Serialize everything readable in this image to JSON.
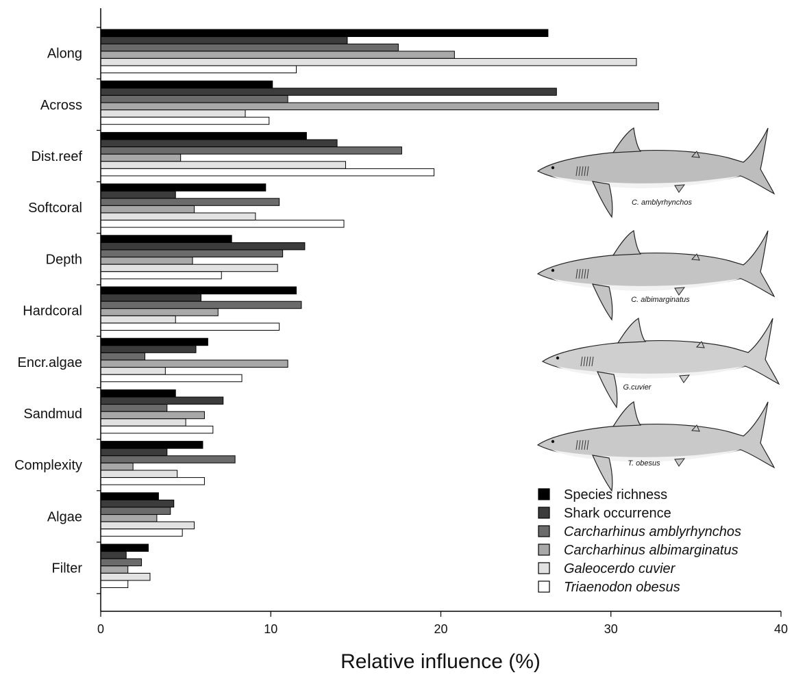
{
  "chart_data": {
    "type": "bar",
    "orientation": "horizontal",
    "title": "",
    "xlabel": "Relative influence (%)",
    "ylabel": "",
    "xlim": [
      0,
      40
    ],
    "xticks": [
      0,
      10,
      20,
      30,
      40
    ],
    "grid": false,
    "legend_position": "bottom-right",
    "categories": [
      "Along",
      "Across",
      "Dist.reef",
      "Softcoral",
      "Depth",
      "Hardcoral",
      "Encr.algae",
      "Sandmud",
      "Complexity",
      "Algae",
      "Filter"
    ],
    "series": [
      {
        "name": "Species richness",
        "italic": false,
        "color": "#000000",
        "values": [
          26.3,
          10.1,
          12.1,
          9.7,
          7.7,
          11.5,
          6.3,
          4.4,
          6.0,
          3.4,
          2.8
        ]
      },
      {
        "name": "Shark occurrence",
        "italic": false,
        "color": "#3c3c3c",
        "values": [
          14.5,
          26.8,
          13.9,
          4.4,
          12.0,
          5.9,
          5.6,
          7.2,
          3.9,
          4.3,
          1.5
        ]
      },
      {
        "name": "Carcharhinus amblyrhynchos",
        "italic": true,
        "color": "#6b6b6b",
        "values": [
          17.5,
          11.0,
          17.7,
          10.5,
          10.7,
          11.8,
          2.6,
          3.9,
          7.9,
          4.1,
          2.4
        ]
      },
      {
        "name": "Carcharhinus albimarginatus",
        "italic": true,
        "color": "#a8a8a8",
        "values": [
          20.8,
          32.8,
          4.7,
          5.5,
          5.4,
          6.9,
          11.0,
          6.1,
          1.9,
          3.3,
          1.6
        ]
      },
      {
        "name": "Galeocerdo cuvier",
        "italic": true,
        "color": "#e2e2e2",
        "values": [
          31.5,
          8.5,
          14.4,
          9.1,
          10.4,
          4.4,
          3.8,
          5.0,
          4.5,
          5.5,
          2.9
        ]
      },
      {
        "name": "Triaenodon obesus",
        "italic": true,
        "color": "#ffffff",
        "values": [
          11.5,
          9.9,
          19.6,
          14.3,
          7.1,
          10.5,
          8.3,
          6.6,
          6.1,
          4.8,
          1.6
        ]
      }
    ]
  },
  "illustrations": [
    {
      "caption": "C. amblyrhynchos",
      "icon": "grey-reef-shark-icon"
    },
    {
      "caption": "C. albimarginatus",
      "icon": "silvertip-shark-icon"
    },
    {
      "caption": "G.cuvier",
      "icon": "tiger-shark-icon"
    },
    {
      "caption": "T. obesus",
      "icon": "whitetip-reef-shark-icon"
    }
  ]
}
